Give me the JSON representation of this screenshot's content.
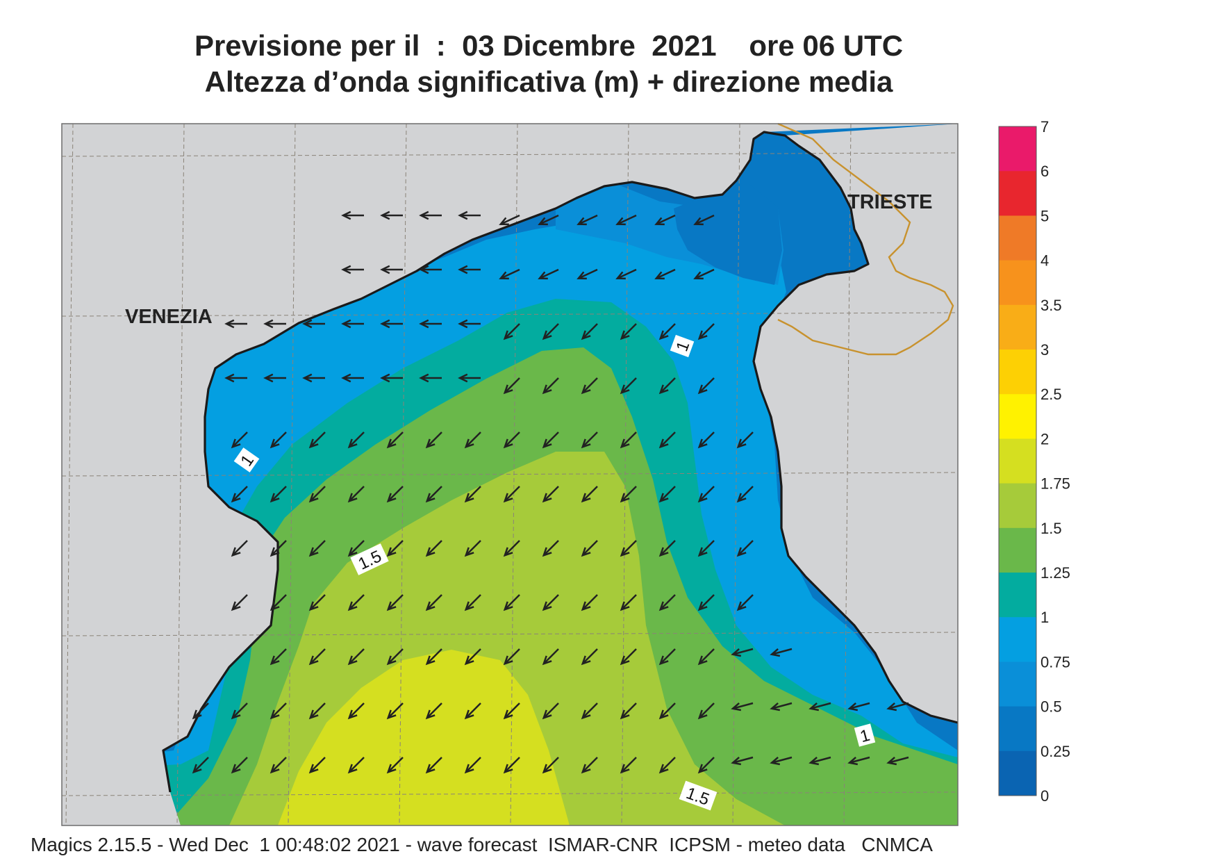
{
  "title": {
    "line1": "Previsione per il  :  03 Dicembre  2021    ore 06 UTC",
    "line2": "Altezza d’onda significativa (m) + direzione media"
  },
  "map": {
    "region": "Northern Adriatic Sea",
    "labels": {
      "venezia": "VENEZIA",
      "trieste": "TRIESTE"
    },
    "contour_labels": [
      "1",
      "1",
      "1.5",
      "1",
      "1.5"
    ],
    "colors": {
      "land": "#d2d3d5",
      "coast": "#1a1a1a",
      "border": "#c8922e",
      "grid": "#8a8378",
      "arrow": "#222222"
    },
    "mean_wave_direction": "from north-east"
  },
  "legend": {
    "ticks": [
      "7",
      "6",
      "5",
      "4",
      "3.5",
      "3",
      "2.5",
      "2",
      "1.75",
      "1.5",
      "1.25",
      "1",
      "0.75",
      "0.5",
      "0.25",
      "0"
    ],
    "bands": [
      {
        "from": 6,
        "to": 7,
        "color": "#ea1a6a"
      },
      {
        "from": 5,
        "to": 6,
        "color": "#e8262e"
      },
      {
        "from": 4,
        "to": 5,
        "color": "#ef7a27"
      },
      {
        "from": 3.5,
        "to": 4,
        "color": "#f7921c"
      },
      {
        "from": 3,
        "to": 3.5,
        "color": "#f9ad17"
      },
      {
        "from": 2.5,
        "to": 3,
        "color": "#fdd004"
      },
      {
        "from": 2,
        "to": 2.5,
        "color": "#fff200"
      },
      {
        "from": 1.75,
        "to": 2,
        "color": "#d5df20"
      },
      {
        "from": 1.5,
        "to": 1.75,
        "color": "#a6cb3a"
      },
      {
        "from": 1.25,
        "to": 1.5,
        "color": "#6ab84a"
      },
      {
        "from": 1,
        "to": 1.25,
        "color": "#03ac9f"
      },
      {
        "from": 0.75,
        "to": 1,
        "color": "#049fe1"
      },
      {
        "from": 0.5,
        "to": 0.75,
        "color": "#0a8fd8"
      },
      {
        "from": 0.25,
        "to": 0.5,
        "color": "#0878c4"
      },
      {
        "from": 0,
        "to": 0.25,
        "color": "#0a64b2"
      }
    ]
  },
  "footer": "Magics 2.15.5 - Wed Dec  1 00:48:02 2021 - wave forecast  ISMAR-CNR  ICPSM - meteo data   CNMCA"
}
